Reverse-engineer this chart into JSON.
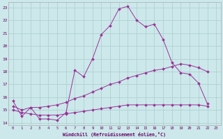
{
  "xlabel": "Windchill (Refroidissement éolien,°C)",
  "bg_color": "#cce8ea",
  "grid_color": "#aacccc",
  "line_color": "#993399",
  "x_values": [
    0,
    1,
    2,
    3,
    4,
    5,
    6,
    7,
    8,
    9,
    10,
    11,
    12,
    13,
    14,
    15,
    16,
    17,
    18,
    19,
    20,
    21,
    22,
    23
  ],
  "line1_y": [
    15.7,
    14.5,
    15.2,
    14.3,
    14.3,
    14.2,
    14.8,
    18.1,
    17.6,
    19.0,
    20.9,
    21.6,
    22.9,
    23.1,
    22.0,
    21.5,
    21.7,
    20.5,
    18.7,
    17.9,
    17.8,
    17.1,
    15.5,
    null
  ],
  "line2_y": [
    15.3,
    15.0,
    15.2,
    15.2,
    15.3,
    15.4,
    15.6,
    15.9,
    16.1,
    16.4,
    16.7,
    17.0,
    17.2,
    17.5,
    17.7,
    17.9,
    18.1,
    18.2,
    18.4,
    18.6,
    18.5,
    18.3,
    18.0,
    null
  ],
  "line3_y": [
    15.0,
    14.8,
    14.7,
    14.6,
    14.6,
    14.6,
    14.7,
    14.8,
    14.9,
    15.0,
    15.1,
    15.2,
    15.3,
    15.4,
    15.4,
    15.4,
    15.4,
    15.4,
    15.4,
    15.4,
    15.4,
    15.4,
    15.3,
    null
  ],
  "ylim": [
    13.8,
    23.4
  ],
  "xlim": [
    -0.5,
    23.5
  ],
  "yticks": [
    14,
    15,
    16,
    17,
    18,
    19,
    20,
    21,
    22,
    23
  ],
  "xticks": [
    0,
    1,
    2,
    3,
    4,
    5,
    6,
    7,
    8,
    9,
    10,
    11,
    12,
    13,
    14,
    15,
    16,
    17,
    18,
    19,
    20,
    21,
    22,
    23
  ]
}
